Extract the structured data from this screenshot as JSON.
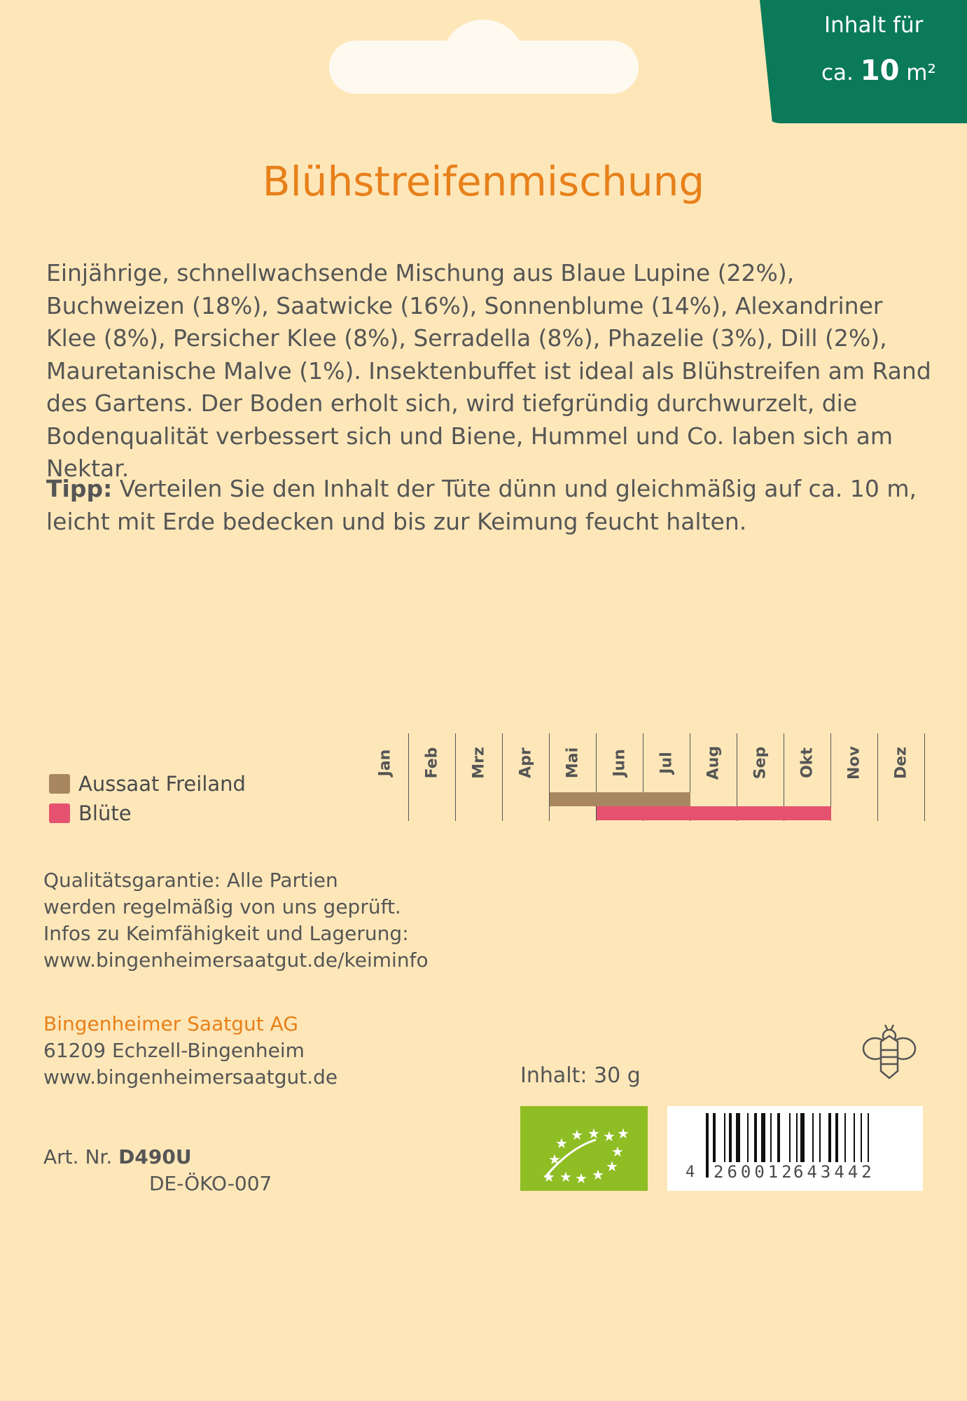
{
  "badge": {
    "line1": "Inhalt für",
    "prefix": "ca.",
    "amount": "10",
    "unit": "m²"
  },
  "title": "Blühstreifenmischung",
  "description": "Einjährige, schnellwachsende Mischung aus Blaue Lupine (22%), Buchweizen (18%), Saatwicke (16%), Sonnenblume (14%), Alexandriner Klee (8%), Persicher Klee (8%), Serradella (8%), Phazelie (3%), Dill (2%), Mauretanische Malve (1%). Insektenbuffet ist ideal als Blühstreifen am Rand des Gartens. Der Boden erholt sich, wird tiefgründig durchwurzelt, die Bodenqualität verbessert sich und Biene, Hummel und Co. laben sich am Nektar.",
  "tip": {
    "label": "Tipp:",
    "text": " Verteilen Sie den Inhalt der Tüte dünn und gleichmäßig auf ca. 10 m, leicht mit Erde bedecken und bis zur Keimung feucht halten."
  },
  "calendar": {
    "months": [
      "Jan",
      "Feb",
      "Mrz",
      "Apr",
      "Mai",
      "Jun",
      "Jul",
      "Aug",
      "Sep",
      "Okt",
      "Nov",
      "Dez"
    ],
    "legend": [
      {
        "label": "Aussaat Freiland",
        "color": "#a88760"
      },
      {
        "label": "Blüte",
        "color": "#e5526f"
      }
    ],
    "aussaat_months": [
      "Mai",
      "Jun",
      "Jul"
    ],
    "bluete_months": [
      "Jun",
      "Jul",
      "Aug",
      "Sep",
      "Okt"
    ]
  },
  "quality": {
    "lines": [
      "Qualitätsgarantie: Alle Partien",
      "werden regelmäßig von uns geprüft.",
      "Infos zu Keimfähigkeit und Lagerung:"
    ],
    "link": "www.bingenheimersaatgut.de/keiminfo"
  },
  "company": {
    "name": "Bingenheimer Saatgut AG",
    "address": "61209 Echzell-Bingenheim",
    "link": "www.bingenheimersaatgut.de"
  },
  "article": {
    "label": "Art. Nr.",
    "number": "D490U",
    "control": "DE-ÖKO-007"
  },
  "content": "Inhalt: 30 g",
  "barcode": {
    "first": "4",
    "group1": "260012",
    "group2": "643442"
  },
  "colors": {
    "background": "#fde7b9",
    "accent": "#e8801a",
    "badge": "#0b7a59",
    "organic": "#8fbd24"
  }
}
